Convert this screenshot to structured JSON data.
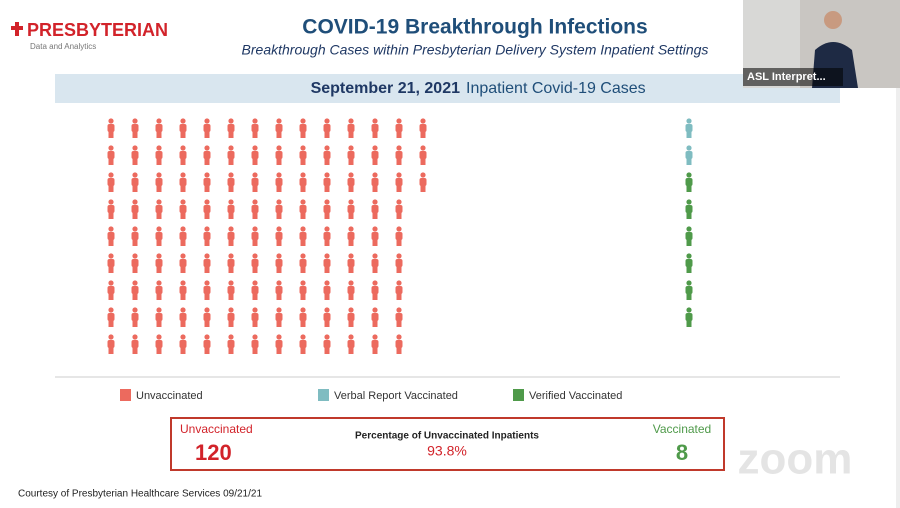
{
  "header": {
    "logo": "PRESBYTERIAN",
    "logo_subtitle": "Data and Analytics",
    "title": "COVID-19 Breakthrough Infections",
    "subtitle": "Breakthrough Cases within Presbyterian Delivery System Inpatient Settings"
  },
  "banner": {
    "date": "September 21, 2021",
    "label": "Inpatient Covid-19 Cases"
  },
  "icon_array": {
    "groups": [
      {
        "name": "Unvaccinated",
        "color": "#ec6a5e",
        "count": 120
      },
      {
        "name": "Verbal Report Vaccinated",
        "color": "#7fbcc1",
        "count": 2
      },
      {
        "name": "Verified Vaccinated",
        "color": "#4f9a4a",
        "count": 6
      }
    ]
  },
  "summary": {
    "unvaccinated_label": "Unvaccinated",
    "unvaccinated_value": 120,
    "percentage_label": "Percentage of Unvaccinated Inpatients",
    "percentage_value": "93.8%",
    "vaccinated_label": "Vaccinated",
    "vaccinated_value": 8
  },
  "footer": "Courtesy of Presbyterian Healthcare Services 09/21/21",
  "video_tile": {
    "name": "ASL Interpret..."
  },
  "watermark": "zoom"
}
